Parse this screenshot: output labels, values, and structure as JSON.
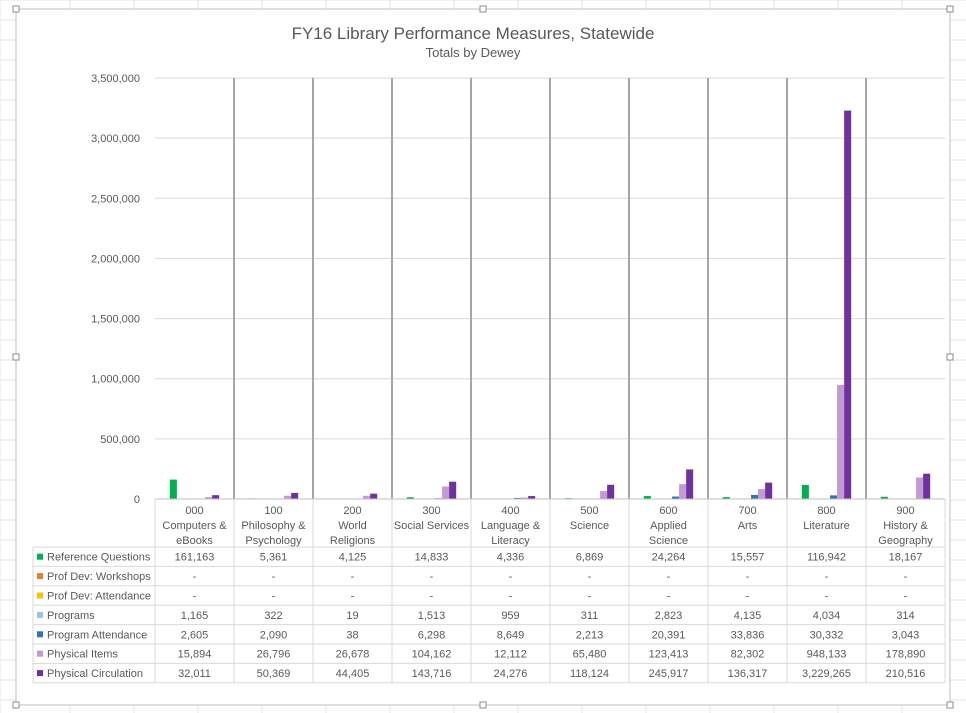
{
  "chart_data": {
    "type": "bar",
    "title": "FY16 Library Performance Measures, Statewide",
    "subtitle": "Totals by Dewey",
    "ylim": [
      0,
      3500000
    ],
    "y_ticks": [
      "0",
      "500,000",
      "1,000,000",
      "1,500,000",
      "2,000,000",
      "2,500,000",
      "3,000,000",
      "3,500,000"
    ],
    "y_tick_values": [
      0,
      500000,
      1000000,
      1500000,
      2000000,
      2500000,
      3000000,
      3500000
    ],
    "categories": [
      [
        "000",
        "Computers &",
        "eBooks"
      ],
      [
        "100",
        "Philosophy &",
        "Psychology"
      ],
      [
        "200",
        "World",
        "Religions"
      ],
      [
        "300",
        "Social Services"
      ],
      [
        "400",
        "Language &",
        "Literacy"
      ],
      [
        "500",
        "Science"
      ],
      [
        "600",
        "Applied",
        "Science"
      ],
      [
        "700",
        "Arts"
      ],
      [
        "800",
        "Literature"
      ],
      [
        "900",
        "History &",
        "Geography"
      ]
    ],
    "grid": true,
    "legend": "data-table",
    "series": [
      {
        "name": "Reference Questions",
        "color": "#00b050",
        "values": [
          161163,
          5361,
          4125,
          14833,
          4336,
          6869,
          24264,
          15557,
          116942,
          18167
        ],
        "labels": [
          "161,163",
          "5,361",
          "4,125",
          "14,833",
          "4,336",
          "6,869",
          "24,264",
          "15,557",
          "116,942",
          "18,167"
        ]
      },
      {
        "name": "Prof Dev: Workshops",
        "color": "#ed7d31",
        "values": [
          0,
          0,
          0,
          0,
          0,
          0,
          0,
          0,
          0,
          0
        ],
        "labels": [
          "-",
          "-",
          "-",
          "-",
          "-",
          "-",
          "-",
          "-",
          "-",
          "-"
        ]
      },
      {
        "name": "Prof Dev: Attendance",
        "color": "#ffc000",
        "values": [
          0,
          0,
          0,
          0,
          0,
          0,
          0,
          0,
          0,
          0
        ],
        "labels": [
          "-",
          "-",
          "-",
          "-",
          "-",
          "-",
          "-",
          "-",
          "-",
          "-"
        ]
      },
      {
        "name": "Programs",
        "color": "#9dc3e6",
        "values": [
          1165,
          322,
          19,
          1513,
          959,
          311,
          2823,
          4135,
          4034,
          314
        ],
        "labels": [
          "1,165",
          "322",
          "19",
          "1,513",
          "959",
          "311",
          "2,823",
          "4,135",
          "4,034",
          "314"
        ]
      },
      {
        "name": "Program Attendance",
        "color": "#2e75b6",
        "values": [
          2605,
          2090,
          38,
          6298,
          8649,
          2213,
          20391,
          33836,
          30332,
          3043
        ],
        "labels": [
          "2,605",
          "2,090",
          "38",
          "6,298",
          "8,649",
          "2,213",
          "20,391",
          "33,836",
          "30,332",
          "3,043"
        ]
      },
      {
        "name": "Physical Items",
        "color": "#c39bd3",
        "values": [
          15894,
          26796,
          26678,
          104162,
          12112,
          65480,
          123413,
          82302,
          948133,
          178890
        ],
        "labels": [
          "15,894",
          "26,796",
          "26,678",
          "104,162",
          "12,112",
          "65,480",
          "123,413",
          "82,302",
          "948,133",
          "178,890"
        ]
      },
      {
        "name": "Physical Circulation",
        "color": "#7030a0",
        "values": [
          32011,
          50369,
          44405,
          143716,
          24276,
          118124,
          245917,
          136317,
          3229265,
          210516
        ],
        "labels": [
          "32,011",
          "50,369",
          "44,405",
          "143,716",
          "24,276",
          "118,124",
          "245,917",
          "136,317",
          "3,229,265",
          "210,516"
        ]
      }
    ]
  }
}
